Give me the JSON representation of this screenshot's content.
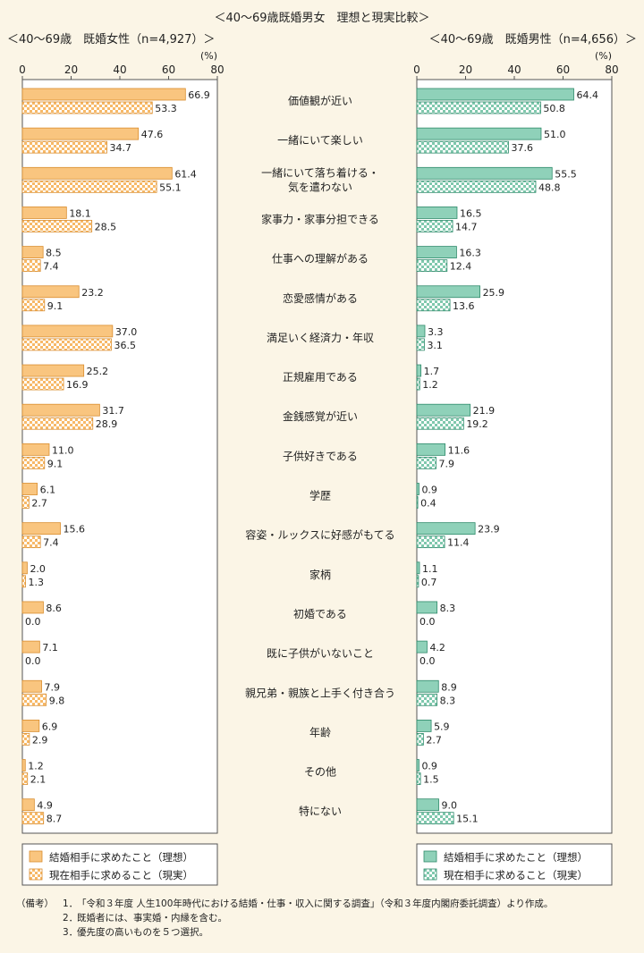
{
  "title": "＜40～69歳既婚男女　理想と現実比較＞",
  "chart_data": {
    "type": "bar",
    "categories": [
      "価値観が近い",
      "一緒にいて楽しい",
      "一緒にいて落ち着ける・\n気を遣わない",
      "家事力・家事分担できる",
      "仕事への理解がある",
      "恋愛感情がある",
      "満足いく経済力・年収",
      "正規雇用である",
      "金銭感覚が近い",
      "子供好きである",
      "学歴",
      "容姿・ルックスに好感がもてる",
      "家柄",
      "初婚である",
      "既に子供がいないこと",
      "親兄弟・親族と上手く付き合う",
      "年齢",
      "その他",
      "特にない"
    ],
    "unit": "(%)",
    "xlim": [
      0,
      80
    ],
    "ticks": [
      "0",
      "20",
      "40",
      "60",
      "80"
    ],
    "panels": [
      {
        "subtitle": "＜40～69歳　既婚女性（n=4,927）＞",
        "color": "#f9c57f",
        "border": "#d98d2e",
        "series": [
          {
            "name": "結婚相手に求めたこと（理想）",
            "values": [
              66.9,
              47.6,
              61.4,
              18.1,
              8.5,
              23.2,
              37.0,
              25.2,
              31.7,
              11.0,
              6.1,
              15.6,
              2.0,
              8.6,
              7.1,
              7.9,
              6.9,
              1.2,
              4.9
            ]
          },
          {
            "name": "現在相手に求めること（現実）",
            "values": [
              53.3,
              34.7,
              55.1,
              28.5,
              7.4,
              9.1,
              36.5,
              16.9,
              28.9,
              9.1,
              2.7,
              7.4,
              1.3,
              0.0,
              0.0,
              9.8,
              2.9,
              2.1,
              8.7
            ]
          }
        ]
      },
      {
        "subtitle": "＜40～69歳　既婚男性（n=4,656）＞",
        "color": "#8fd1b9",
        "border": "#2e8a6a",
        "series": [
          {
            "name": "結婚相手に求めたこと（理想）",
            "values": [
              64.4,
              51.0,
              55.5,
              16.5,
              16.3,
              25.9,
              3.3,
              1.7,
              21.9,
              11.6,
              0.9,
              23.9,
              1.1,
              8.3,
              4.2,
              8.9,
              5.9,
              0.9,
              9.0
            ]
          },
          {
            "name": "現在相手に求めること（現実）",
            "values": [
              50.8,
              37.6,
              48.8,
              14.7,
              12.4,
              13.6,
              3.1,
              1.2,
              19.2,
              7.9,
              0.4,
              11.4,
              0.7,
              0.0,
              0.0,
              8.3,
              2.7,
              1.5,
              15.1
            ]
          }
        ]
      }
    ]
  },
  "notes": {
    "label": "（備考）",
    "items": [
      {
        "num": "1．",
        "text": "「令和３年度 人生100年時代における結婚・仕事・収入に関する調査」（令和３年度内閣府委託調査）より作成。"
      },
      {
        "num": "2．",
        "text": "既婚者には、事実婚・内縁を含む。"
      },
      {
        "num": "3．",
        "text": "優先度の高いものを５つ選択。"
      }
    ]
  }
}
